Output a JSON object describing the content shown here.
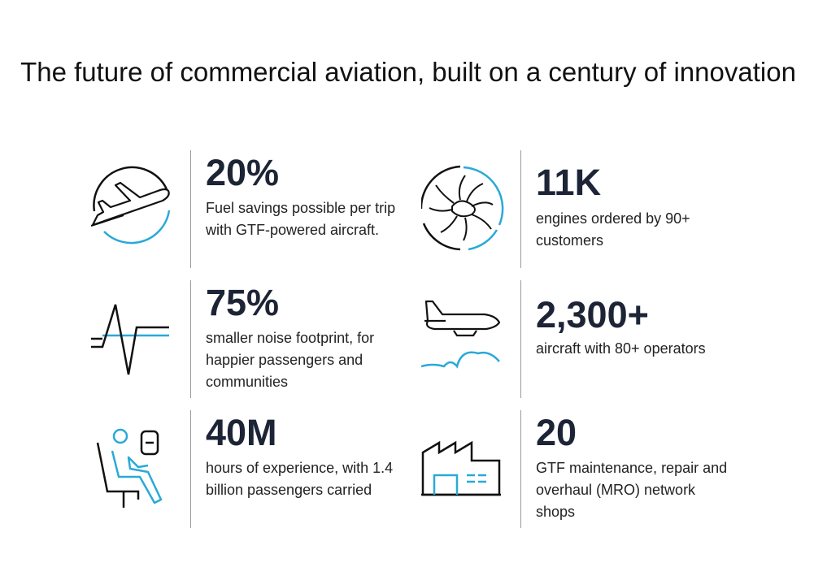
{
  "title": "The future of commercial aviation, built on a century of innovation",
  "colors": {
    "dark": "#1c2436",
    "accent": "#29a9d8",
    "text": "#222222",
    "divider": "#9a9a9a"
  },
  "stats": [
    {
      "icon": "plane-takeoff-icon",
      "number": "20%",
      "description": "Fuel savings possible per trip with GTF-powered aircraft."
    },
    {
      "icon": "engine-fan-icon",
      "number": "11K",
      "description": "engines ordered by 90+ customers"
    },
    {
      "icon": "noise-wave-icon",
      "number": "75%",
      "description": "smaller noise footprint, for happier passengers and communities"
    },
    {
      "icon": "plane-clouds-icon",
      "number": "2,300+",
      "description": "aircraft with 80+ operators"
    },
    {
      "icon": "passenger-seat-icon",
      "number": "40M",
      "description": "hours of experience, with 1.4 billion passengers carried"
    },
    {
      "icon": "factory-icon",
      "number": "20",
      "description": "GTF maintenance, repair and overhaul (MRO) network shops"
    }
  ]
}
